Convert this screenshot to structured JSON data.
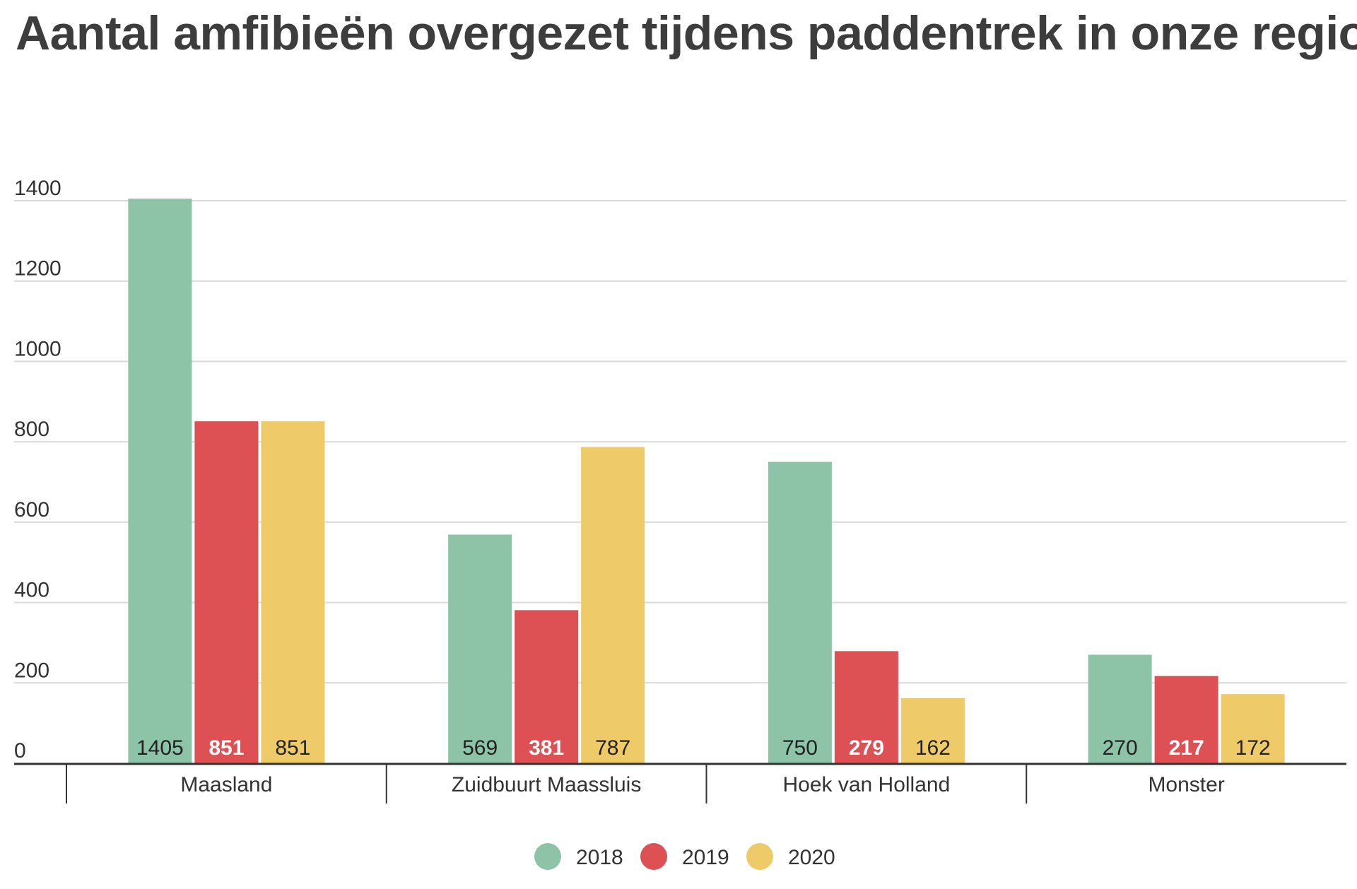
{
  "chart_data": {
    "type": "bar",
    "title": "Aantal amfibieën overgezet tijdens paddentrek in onze regio",
    "xlabel": "",
    "ylabel": "",
    "ylim": [
      0,
      1400
    ],
    "yticks": [
      0,
      200,
      400,
      600,
      800,
      1000,
      1200,
      1400
    ],
    "grid": true,
    "legend_position": "bottom",
    "categories": [
      "Maasland",
      "Zuidbuurt Maassluis",
      "Hoek van Holland",
      "Monster"
    ],
    "series": [
      {
        "name": "2018",
        "color": "#8dc3a7",
        "label_color": "#222222",
        "values": [
          1405,
          569,
          750,
          270
        ]
      },
      {
        "name": "2019",
        "color": "#dd5154",
        "label_color": "#ffffff",
        "values": [
          851,
          381,
          279,
          217
        ]
      },
      {
        "name": "2020",
        "color": "#eeca68",
        "label_color": "#222222",
        "values": [
          851,
          787,
          162,
          172
        ]
      }
    ]
  }
}
